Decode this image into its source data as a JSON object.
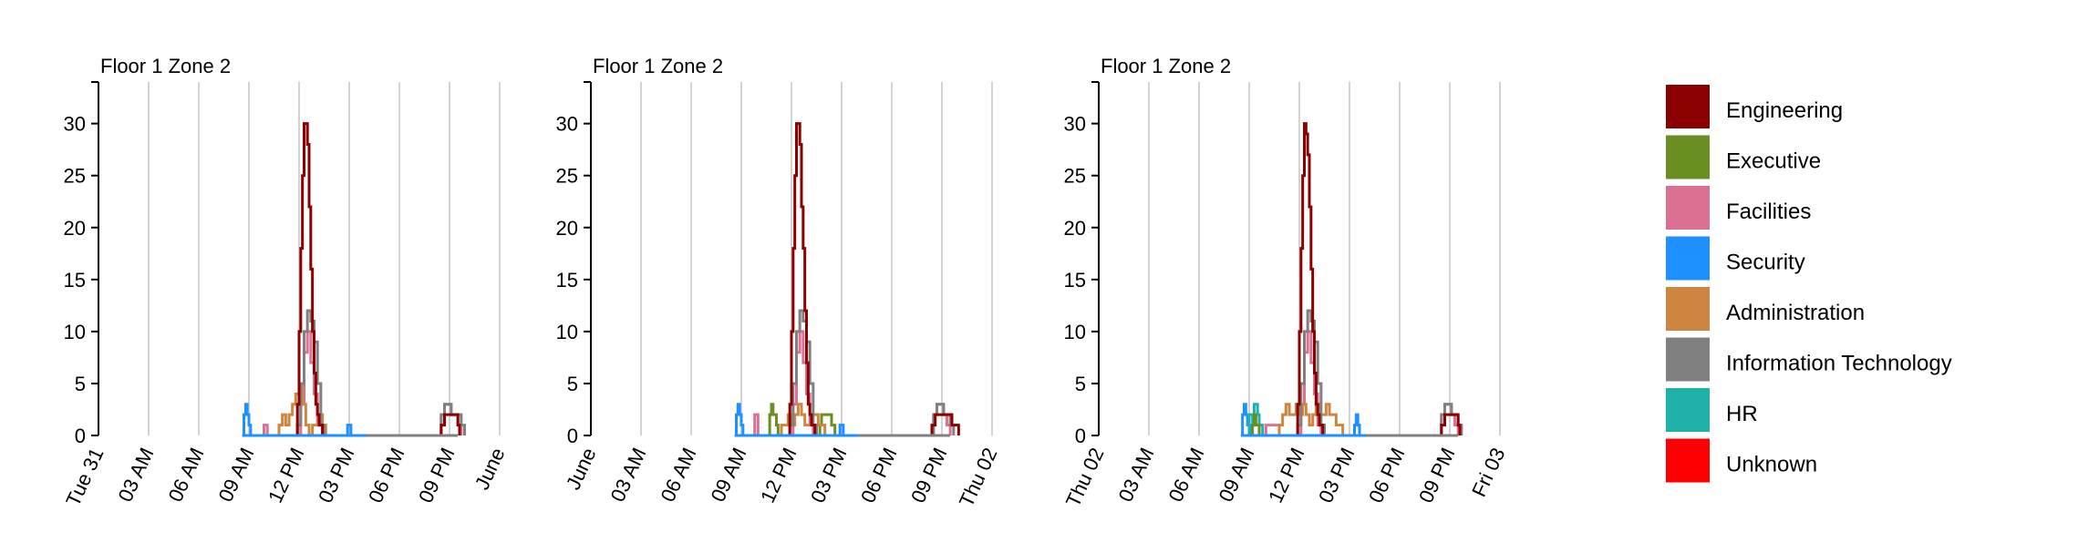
{
  "colors": {
    "Engineering": "#8b0000",
    "Executive": "#6b8e23",
    "Facilities": "#db7093",
    "Security": "#1e90ff",
    "Administration": "#cd853f",
    "Information Technology": "#808080",
    "HR": "#20b2aa",
    "Unknown": "#ff0000"
  },
  "legend": {
    "items": [
      {
        "label": "Engineering",
        "color": "#8b0000"
      },
      {
        "label": "Executive",
        "color": "#6b8e23"
      },
      {
        "label": "Facilities",
        "color": "#db7093"
      },
      {
        "label": "Security",
        "color": "#1e90ff"
      },
      {
        "label": "Administration",
        "color": "#cd853f"
      },
      {
        "label": "Information Technology",
        "color": "#808080"
      },
      {
        "label": "HR",
        "color": "#20b2aa"
      },
      {
        "label": "Unknown",
        "color": "#ff0000"
      }
    ]
  },
  "chart_data": [
    {
      "type": "line",
      "title": "Floor 1 Zone 2",
      "ylim": [
        0,
        34
      ],
      "yticks": [
        0,
        5,
        10,
        15,
        20,
        25,
        30
      ],
      "xlim": [
        0,
        24
      ],
      "xticks": [
        0,
        3,
        6,
        9,
        12,
        15,
        18,
        21,
        24
      ],
      "xtick_labels": [
        "Tue 31",
        "03 AM",
        "06 AM",
        "09 AM",
        "12 PM",
        "03 PM",
        "06 PM",
        "09 PM",
        "June"
      ],
      "grid": "vertical",
      "series": [
        {
          "name": "Security",
          "x": [
            8.6,
            8.7,
            8.8,
            8.9,
            9.0,
            9.1,
            9.2,
            11.0,
            14.8,
            14.9,
            15.0,
            15.1,
            15.2,
            20.5
          ],
          "y": [
            0,
            2,
            3,
            2,
            1,
            0,
            0,
            0,
            0,
            1,
            1,
            0,
            0,
            0
          ]
        },
        {
          "name": "Facilities",
          "x": [
            9.8,
            9.9,
            10.0,
            10.1,
            11.9,
            12.1,
            12.3,
            12.5,
            12.7,
            12.9,
            13.1,
            13.4,
            20.3,
            20.5,
            20.7,
            20.9,
            21.1,
            21.3,
            21.5,
            21.7
          ],
          "y": [
            0,
            1,
            1,
            0,
            0,
            3,
            8,
            10,
            7,
            4,
            1,
            0,
            0,
            2,
            3,
            3,
            2,
            2,
            1,
            0
          ]
        },
        {
          "name": "Administration",
          "x": [
            10.6,
            10.8,
            11.0,
            11.2,
            11.4,
            11.6,
            11.8,
            12.0,
            12.2,
            12.4,
            12.6,
            12.8,
            13.0,
            13.2,
            13.4,
            13.6
          ],
          "y": [
            0,
            1,
            2,
            1,
            2,
            3,
            4,
            5,
            3,
            1,
            0,
            1,
            1,
            2,
            1,
            0
          ]
        },
        {
          "name": "Information Technology",
          "x": [
            11.8,
            11.9,
            12.1,
            12.3,
            12.5,
            12.7,
            12.9,
            13.1,
            13.3,
            13.5,
            20.3,
            20.5,
            20.7,
            20.9,
            21.1,
            21.3,
            21.5,
            21.7,
            21.9
          ],
          "y": [
            0,
            1,
            5,
            10,
            12,
            11,
            9,
            5,
            1,
            0,
            0,
            2,
            3,
            3,
            2,
            2,
            2,
            1,
            0
          ]
        },
        {
          "name": "Engineering",
          "x": [
            11.8,
            11.9,
            12.0,
            12.1,
            12.2,
            12.3,
            12.4,
            12.5,
            12.6,
            12.7,
            12.8,
            12.9,
            13.0,
            13.1,
            13.2,
            13.3,
            13.4,
            20.4,
            20.5,
            20.7,
            20.9,
            21.1,
            21.3,
            21.5,
            21.6
          ],
          "y": [
            0,
            3,
            10,
            18,
            25,
            30,
            30,
            28,
            22,
            16,
            10,
            6,
            3,
            2,
            1,
            1,
            0,
            0,
            1,
            2,
            2,
            2,
            2,
            1,
            0
          ]
        }
      ]
    },
    {
      "type": "line",
      "title": "Floor 1 Zone 2",
      "ylim": [
        0,
        34
      ],
      "yticks": [
        0,
        5,
        10,
        15,
        20,
        25,
        30
      ],
      "xlim": [
        0,
        24
      ],
      "xticks": [
        0,
        3,
        6,
        9,
        12,
        15,
        18,
        21,
        24
      ],
      "xtick_labels": [
        "June",
        "03 AM",
        "06 AM",
        "09 AM",
        "12 PM",
        "03 PM",
        "06 PM",
        "09 PM",
        "Thu 02"
      ],
      "grid": "vertical",
      "series": [
        {
          "name": "Security",
          "x": [
            8.6,
            8.7,
            8.8,
            8.9,
            9.0,
            9.1,
            14.8,
            14.9,
            15.0,
            15.1,
            15.2,
            21.0
          ],
          "y": [
            0,
            2,
            3,
            2,
            1,
            0,
            0,
            1,
            1,
            0,
            0,
            0
          ]
        },
        {
          "name": "Facilities",
          "x": [
            9.7,
            9.8,
            9.9,
            10.0,
            11.9,
            12.1,
            12.3,
            12.5,
            12.7,
            12.9,
            13.1,
            13.3,
            20.3,
            20.5,
            20.7,
            20.9,
            21.1,
            21.3,
            21.5
          ],
          "y": [
            0,
            2,
            2,
            0,
            0,
            3,
            8,
            10,
            7,
            4,
            1,
            0,
            0,
            2,
            3,
            3,
            2,
            1,
            0
          ]
        },
        {
          "name": "Executive",
          "x": [
            10.6,
            10.7,
            10.8,
            10.9,
            11.0,
            11.1,
            11.2,
            13.6,
            13.7,
            13.8,
            14.0,
            14.2,
            14.4,
            14.6
          ],
          "y": [
            0,
            2,
            3,
            2,
            2,
            1,
            0,
            0,
            1,
            2,
            2,
            2,
            1,
            0
          ]
        },
        {
          "name": "Administration",
          "x": [
            11.2,
            11.4,
            11.6,
            11.8,
            12.0,
            12.2,
            12.4,
            12.6,
            12.8,
            13.0,
            13.2,
            13.4,
            13.6,
            13.8,
            14.0
          ],
          "y": [
            0,
            1,
            1,
            2,
            1,
            2,
            3,
            2,
            1,
            1,
            2,
            2,
            1,
            1,
            0
          ]
        },
        {
          "name": "Information Technology",
          "x": [
            11.8,
            11.9,
            12.1,
            12.3,
            12.5,
            12.7,
            12.9,
            13.1,
            13.3,
            13.5,
            20.3,
            20.5,
            20.7,
            20.9,
            21.1,
            21.3,
            21.5,
            21.7
          ],
          "y": [
            0,
            1,
            5,
            10,
            12,
            11,
            9,
            5,
            1,
            0,
            0,
            2,
            3,
            3,
            2,
            2,
            1,
            0
          ]
        },
        {
          "name": "Engineering",
          "x": [
            11.8,
            11.9,
            12.0,
            12.1,
            12.2,
            12.3,
            12.4,
            12.5,
            12.6,
            12.7,
            12.8,
            12.9,
            13.0,
            13.1,
            13.2,
            13.3,
            13.4,
            20.3,
            20.4,
            20.6,
            20.8,
            21.0,
            21.2,
            21.4,
            21.6,
            21.8,
            22.0
          ],
          "y": [
            0,
            3,
            10,
            18,
            25,
            30,
            30,
            28,
            22,
            18,
            12,
            7,
            3,
            2,
            1,
            1,
            0,
            0,
            1,
            2,
            2,
            2,
            2,
            2,
            1,
            1,
            0
          ]
        }
      ]
    },
    {
      "type": "line",
      "title": "Floor 1 Zone 2",
      "ylim": [
        0,
        34
      ],
      "yticks": [
        0,
        5,
        10,
        15,
        20,
        25,
        30
      ],
      "xlim": [
        0,
        24
      ],
      "xticks": [
        0,
        3,
        6,
        9,
        12,
        15,
        18,
        21,
        24
      ],
      "xtick_labels": [
        "Thu 02",
        "03 AM",
        "06 AM",
        "09 AM",
        "12 PM",
        "03 PM",
        "06 PM",
        "09 PM",
        "Fri 03"
      ],
      "grid": "vertical",
      "series": [
        {
          "name": "Security",
          "x": [
            8.5,
            8.6,
            8.7,
            8.8,
            8.9,
            9.0,
            9.1,
            15.2,
            15.3,
            15.4,
            15.5,
            15.6,
            20.5
          ],
          "y": [
            0,
            2,
            3,
            2,
            1,
            1,
            0,
            0,
            1,
            2,
            1,
            0,
            0
          ]
        },
        {
          "name": "HR",
          "x": [
            8.9,
            9.0,
            9.1,
            9.2,
            9.3,
            9.4,
            9.5,
            9.6,
            9.7,
            9.8
          ],
          "y": [
            0,
            2,
            2,
            1,
            3,
            3,
            2,
            1,
            1,
            0
          ]
        },
        {
          "name": "Executive",
          "x": [
            9.1,
            9.2,
            9.3,
            9.4,
            9.5,
            9.6
          ],
          "y": [
            0,
            1,
            2,
            1,
            1,
            0
          ]
        },
        {
          "name": "Facilities",
          "x": [
            9.9,
            10.0,
            10.2,
            10.4,
            10.6,
            10.8,
            11.9,
            12.1,
            12.3,
            12.5,
            12.7,
            12.9,
            13.1,
            13.3,
            20.3,
            20.5,
            20.7,
            20.9,
            21.1,
            21.3,
            21.5
          ],
          "y": [
            0,
            1,
            1,
            1,
            1,
            0,
            0,
            3,
            8,
            10,
            7,
            4,
            1,
            0,
            0,
            2,
            3,
            3,
            2,
            1,
            0
          ]
        },
        {
          "name": "Administration",
          "x": [
            10.6,
            10.8,
            11.0,
            11.2,
            11.4,
            11.6,
            11.8,
            12.0,
            12.2,
            12.4,
            12.6,
            12.8,
            13.0,
            13.2,
            13.4,
            13.6,
            13.8,
            14.0,
            14.2,
            14.4,
            14.6
          ],
          "y": [
            0,
            1,
            2,
            3,
            2,
            2,
            3,
            2,
            3,
            2,
            1,
            2,
            3,
            2,
            2,
            3,
            2,
            2,
            1,
            1,
            0
          ]
        },
        {
          "name": "Information Technology",
          "x": [
            11.8,
            11.9,
            12.1,
            12.3,
            12.5,
            12.7,
            12.9,
            13.1,
            13.3,
            13.5,
            20.3,
            20.5,
            20.7,
            20.9,
            21.1,
            21.3,
            21.5,
            21.7
          ],
          "y": [
            0,
            1,
            5,
            10,
            12,
            11,
            9,
            5,
            1,
            0,
            0,
            2,
            3,
            3,
            2,
            2,
            1,
            0
          ]
        },
        {
          "name": "Engineering",
          "x": [
            11.8,
            11.9,
            12.0,
            12.1,
            12.2,
            12.3,
            12.4,
            12.5,
            12.6,
            12.7,
            12.8,
            12.9,
            13.0,
            13.1,
            13.2,
            13.3,
            13.4,
            20.4,
            20.5,
            20.7,
            20.9,
            21.1,
            21.3,
            21.5,
            21.6
          ],
          "y": [
            0,
            3,
            10,
            18,
            25,
            30,
            29,
            27,
            22,
            16,
            10,
            6,
            3,
            2,
            1,
            1,
            0,
            0,
            1,
            2,
            2,
            2,
            2,
            1,
            0
          ]
        }
      ]
    }
  ]
}
